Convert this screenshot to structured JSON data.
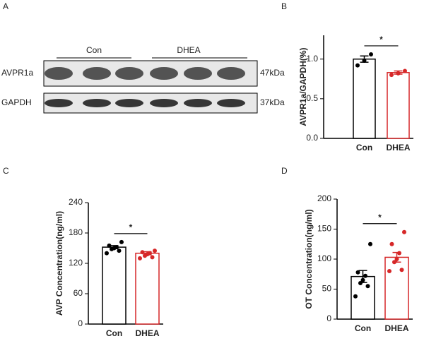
{
  "blot": {
    "panel": "A",
    "groups": [
      "Con",
      "DHEA"
    ],
    "rows": [
      {
        "label": "AVPR1a",
        "size": "47kDa"
      },
      {
        "label": "GAPDH",
        "size": "37kDa"
      }
    ]
  },
  "chart_data": [
    {
      "type": "bar",
      "panel": "B",
      "ylabel": "AVPR1a/GAPDH(%)",
      "categories": [
        "Con",
        "DHEA"
      ],
      "colors": [
        "#000000",
        "#d62728"
      ],
      "values": [
        1.0,
        0.83
      ],
      "errors": [
        0.04,
        0.02
      ],
      "points": [
        [
          1.06,
          0.98,
          0.92
        ],
        [
          0.85,
          0.82,
          0.8
        ]
      ],
      "significance": "*",
      "ylim": [
        0,
        1.3
      ],
      "yticks": [
        {
          "value": 0,
          "label": "0.0"
        },
        {
          "value": 0.5,
          "label": "0.5"
        },
        {
          "value": 1,
          "label": "1.0"
        }
      ]
    },
    {
      "type": "bar",
      "panel": "C",
      "ylabel": "AVP Concentration(ng/ml)",
      "categories": [
        "Con",
        "DHEA"
      ],
      "colors": [
        "#000000",
        "#d62728"
      ],
      "values": [
        152,
        140
      ],
      "errors": [
        3,
        3
      ],
      "points": [
        [
          162,
          155,
          152,
          150,
          148,
          145,
          140
        ],
        [
          145,
          142,
          140,
          138,
          135,
          132,
          130
        ]
      ],
      "significance": "*",
      "ylim": [
        0,
        240
      ],
      "yticks": [
        0,
        60,
        120,
        180,
        240
      ]
    },
    {
      "type": "bar",
      "panel": "D",
      "ylabel": "OT Concentration(ng/ml)",
      "categories": [
        "Con",
        "DHEA"
      ],
      "colors": [
        "#000000",
        "#d62728"
      ],
      "values": [
        71,
        103
      ],
      "errors": [
        10,
        8
      ],
      "points": [
        [
          125,
          78,
          72,
          65,
          60,
          55,
          38
        ],
        [
          145,
          125,
          110,
          100,
          95,
          82,
          80
        ]
      ],
      "significance": "*",
      "ylim": [
        0,
        200
      ],
      "yticks": [
        0,
        50,
        100,
        150,
        200
      ]
    }
  ]
}
